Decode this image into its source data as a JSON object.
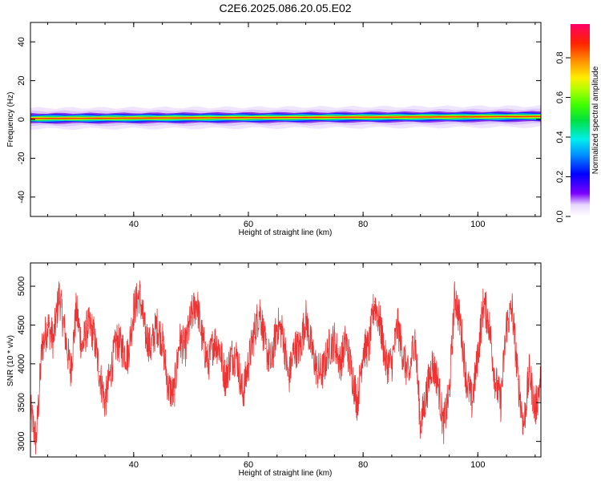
{
  "title": "C2E6.2025.086.20.05.E02",
  "chart_data": [
    {
      "type": "heatmap",
      "xlabel": "Height of straight line (km)",
      "ylabel": "Frequency (Hz)",
      "xlim": [
        22,
        111
      ],
      "ylim": [
        -50,
        50
      ],
      "xticks": [
        40,
        60,
        80,
        100
      ],
      "yticks": [
        -40,
        -20,
        0,
        20,
        40
      ],
      "colorbar": {
        "label": "Normalized spectral amplitude",
        "range": [
          0,
          0.97
        ],
        "ticks": [
          0.0,
          0.2,
          0.4,
          0.6,
          0.8
        ]
      },
      "band": {
        "description_levels": [
          0.1,
          0.3,
          0.5,
          0.7,
          0.9
        ],
        "freq_start": [
          0.5,
          2.5
        ],
        "freq_end": [
          1.5,
          3.0
        ]
      }
    },
    {
      "type": "line",
      "xlabel": "Height of straight line (km)",
      "ylabel": "SNR (10 * v/v)",
      "xlim": [
        22,
        111
      ],
      "ylim": [
        2800,
        5300
      ],
      "xticks": [
        40,
        60,
        80,
        100
      ],
      "yticks": [
        3000,
        3500,
        4000,
        4500,
        5000
      ],
      "color": "#ee3333",
      "x": [
        22,
        23,
        24,
        25,
        26,
        27,
        28,
        29,
        30,
        31,
        32,
        33,
        34,
        35,
        36,
        37,
        38,
        39,
        40,
        41,
        42,
        43,
        44,
        45,
        46,
        47,
        48,
        49,
        50,
        51,
        52,
        53,
        54,
        55,
        56,
        57,
        58,
        59,
        60,
        61,
        62,
        63,
        64,
        65,
        66,
        67,
        68,
        69,
        70,
        71,
        72,
        73,
        74,
        75,
        76,
        77,
        78,
        79,
        80,
        81,
        82,
        83,
        84,
        85,
        86,
        87,
        88,
        89,
        90,
        91,
        92,
        93,
        94,
        95,
        96,
        97,
        98,
        99,
        100,
        101,
        102,
        103,
        104,
        105,
        106,
        107,
        108,
        109,
        110,
        111
      ],
      "values": [
        3400,
        3000,
        4200,
        4500,
        4300,
        4900,
        4400,
        3900,
        4700,
        4200,
        4500,
        4400,
        3900,
        3500,
        3900,
        4300,
        4200,
        4100,
        4700,
        4900,
        4400,
        4200,
        4500,
        4300,
        3700,
        3600,
        4300,
        4200,
        4600,
        4800,
        4300,
        4000,
        4300,
        4200,
        3800,
        4100,
        4100,
        3600,
        4000,
        4400,
        4700,
        4200,
        4000,
        4500,
        4400,
        3800,
        4200,
        4200,
        4600,
        4200,
        3900,
        3900,
        4200,
        4300,
        4000,
        4300,
        3900,
        3500,
        4200,
        4200,
        4800,
        4500,
        4000,
        4000,
        4500,
        4100,
        3800,
        4400,
        3200,
        3600,
        4000,
        3800,
        3200,
        3600,
        4900,
        4500,
        3800,
        3500,
        4100,
        4800,
        4500,
        3800,
        3500,
        4500,
        4700,
        3800,
        3200,
        3900,
        3400,
        3800
      ]
    }
  ]
}
